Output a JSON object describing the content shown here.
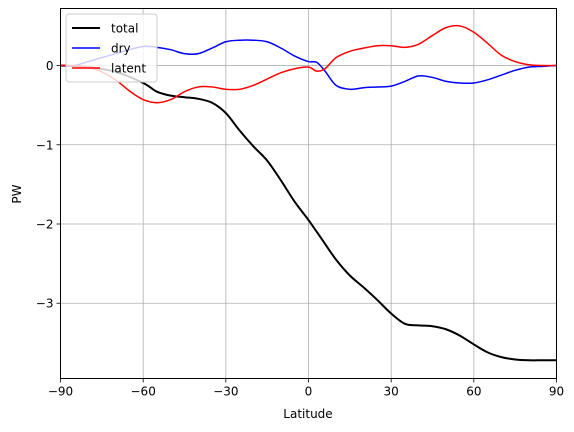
{
  "chart_data": {
    "type": "line",
    "title": "",
    "xlabel": "Latitude",
    "ylabel": "PW",
    "xlim": [
      -90,
      90
    ],
    "ylim": [
      -3.95,
      0.72
    ],
    "xticks": [
      -90,
      -60,
      -30,
      0,
      30,
      60,
      90
    ],
    "xtick_labels": [
      "−90",
      "−60",
      "−30",
      "0",
      "30",
      "60",
      "90"
    ],
    "yticks": [
      0,
      -1,
      -2,
      -3
    ],
    "ytick_labels": [
      "0",
      "−1",
      "−2",
      "−3"
    ],
    "grid": true,
    "legend_position": "top-left",
    "series": [
      {
        "name": "total",
        "color": "#000000",
        "width": 2,
        "x": [
          -90,
          -80,
          -70,
          -60,
          -55,
          -50,
          -45,
          -40,
          -35,
          -30,
          -25,
          -20,
          -15,
          -10,
          -5,
          0,
          5,
          10,
          15,
          20,
          25,
          30,
          35,
          40,
          45,
          50,
          55,
          60,
          65,
          70,
          75,
          80,
          85,
          90
        ],
        "y": [
          0.0,
          -0.02,
          -0.08,
          -0.22,
          -0.33,
          -0.38,
          -0.4,
          -0.42,
          -0.47,
          -0.6,
          -0.82,
          -1.02,
          -1.2,
          -1.45,
          -1.72,
          -1.95,
          -2.2,
          -2.45,
          -2.65,
          -2.8,
          -2.96,
          -3.13,
          -3.26,
          -3.28,
          -3.29,
          -3.33,
          -3.41,
          -3.52,
          -3.62,
          -3.68,
          -3.71,
          -3.72,
          -3.72,
          -3.72
        ]
      },
      {
        "name": "dry",
        "color": "#0000ff",
        "width": 1.5,
        "x": [
          -90,
          -85,
          -80,
          -75,
          -70,
          -65,
          -60,
          -55,
          -50,
          -45,
          -40,
          -35,
          -30,
          -25,
          -20,
          -15,
          -10,
          -5,
          0,
          3,
          6,
          10,
          15,
          20,
          25,
          30,
          35,
          40,
          45,
          50,
          55,
          60,
          65,
          70,
          75,
          80,
          85,
          90
        ],
        "y": [
          0.0,
          0.0,
          0.05,
          0.1,
          0.15,
          0.2,
          0.24,
          0.23,
          0.2,
          0.15,
          0.15,
          0.22,
          0.3,
          0.32,
          0.32,
          0.3,
          0.22,
          0.12,
          0.05,
          0.04,
          -0.07,
          -0.25,
          -0.3,
          -0.28,
          -0.27,
          -0.26,
          -0.2,
          -0.13,
          -0.15,
          -0.2,
          -0.22,
          -0.22,
          -0.18,
          -0.12,
          -0.06,
          -0.02,
          -0.01,
          0.0
        ]
      },
      {
        "name": "latent",
        "color": "#ff0000",
        "width": 1.5,
        "x": [
          -90,
          -85,
          -80,
          -75,
          -70,
          -65,
          -60,
          -55,
          -50,
          -45,
          -40,
          -35,
          -30,
          -25,
          -20,
          -15,
          -10,
          -5,
          0,
          3,
          6,
          10,
          15,
          20,
          25,
          30,
          35,
          40,
          45,
          50,
          55,
          60,
          65,
          70,
          75,
          80,
          85,
          90
        ],
        "y": [
          0.0,
          0.0,
          -0.02,
          -0.08,
          -0.18,
          -0.32,
          -0.43,
          -0.47,
          -0.43,
          -0.33,
          -0.27,
          -0.27,
          -0.3,
          -0.3,
          -0.25,
          -0.17,
          -0.09,
          -0.04,
          -0.02,
          -0.07,
          -0.04,
          0.1,
          0.18,
          0.22,
          0.25,
          0.25,
          0.23,
          0.27,
          0.38,
          0.48,
          0.5,
          0.42,
          0.28,
          0.13,
          0.05,
          0.01,
          0.0,
          0.0
        ]
      }
    ]
  }
}
